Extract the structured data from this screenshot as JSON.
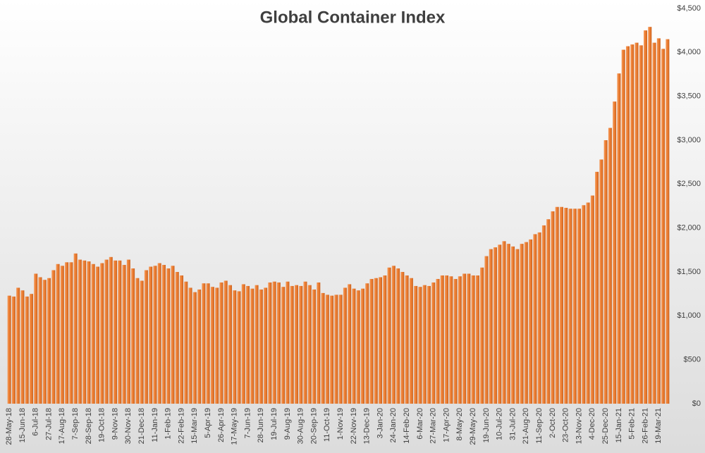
{
  "chart_data": {
    "type": "bar",
    "title": "Global Container Index",
    "categories": [
      "28-May-18",
      null,
      null,
      "15-Jun-18",
      null,
      null,
      "6-Jul-18",
      null,
      null,
      "27-Jul-18",
      null,
      null,
      "17-Aug-18",
      null,
      null,
      "7-Sep-18",
      null,
      null,
      "28-Sep-18",
      null,
      null,
      "19-Oct-18",
      null,
      null,
      "9-Nov-18",
      null,
      null,
      "30-Nov-18",
      null,
      null,
      "21-Dec-18",
      null,
      null,
      "11-Jan-19",
      null,
      null,
      "1-Feb-19",
      null,
      null,
      "22-Feb-19",
      null,
      null,
      "15-Mar-19",
      null,
      null,
      "5-Apr-19",
      null,
      null,
      "26-Apr-19",
      null,
      null,
      "17-May-19",
      null,
      null,
      "7-Jun-19",
      null,
      null,
      "28-Jun-19",
      null,
      null,
      "19-Jul-19",
      null,
      null,
      "9-Aug-19",
      null,
      null,
      "30-Aug-19",
      null,
      null,
      "20-Sep-19",
      null,
      null,
      "11-Oct-19",
      null,
      null,
      "1-Nov-19",
      null,
      null,
      "22-Nov-19",
      null,
      null,
      "13-Dec-19",
      null,
      null,
      "3-Jan-20",
      null,
      null,
      "24-Jan-20",
      null,
      null,
      "14-Feb-20",
      null,
      null,
      "6-Mar-20",
      null,
      null,
      "27-Mar-20",
      null,
      null,
      "17-Apr-20",
      null,
      null,
      "8-May-20",
      null,
      null,
      "29-May-20",
      null,
      null,
      "19-Jun-20",
      null,
      null,
      "10-Jul-20",
      null,
      null,
      "31-Jul-20",
      null,
      null,
      "21-Aug-20",
      null,
      null,
      "11-Sep-20",
      null,
      null,
      "2-Oct-20",
      null,
      null,
      "23-Oct-20",
      null,
      null,
      "13-Nov-20",
      null,
      null,
      "4-Dec-20",
      null,
      null,
      "25-Dec-20",
      null,
      null,
      "15-Jan-21",
      null,
      null,
      "5-Feb-21",
      null,
      null,
      "26-Feb-21",
      null,
      null,
      "19-Mar-21",
      null,
      null
    ],
    "values": [
      1230,
      1220,
      1320,
      1290,
      1220,
      1250,
      1480,
      1440,
      1410,
      1430,
      1520,
      1590,
      1570,
      1610,
      1610,
      1710,
      1640,
      1630,
      1620,
      1590,
      1560,
      1600,
      1640,
      1670,
      1630,
      1630,
      1580,
      1640,
      1540,
      1430,
      1400,
      1520,
      1560,
      1570,
      1600,
      1580,
      1540,
      1570,
      1500,
      1460,
      1390,
      1320,
      1270,
      1300,
      1370,
      1370,
      1330,
      1320,
      1380,
      1400,
      1350,
      1290,
      1280,
      1360,
      1340,
      1310,
      1350,
      1300,
      1320,
      1380,
      1390,
      1380,
      1330,
      1390,
      1340,
      1350,
      1340,
      1390,
      1350,
      1300,
      1380,
      1260,
      1240,
      1230,
      1240,
      1240,
      1320,
      1360,
      1310,
      1290,
      1310,
      1370,
      1420,
      1430,
      1440,
      1460,
      1550,
      1570,
      1540,
      1500,
      1460,
      1430,
      1340,
      1330,
      1350,
      1340,
      1380,
      1420,
      1460,
      1460,
      1450,
      1420,
      1450,
      1480,
      1480,
      1460,
      1460,
      1550,
      1680,
      1760,
      1780,
      1810,
      1850,
      1820,
      1790,
      1760,
      1820,
      1840,
      1870,
      1930,
      1950,
      2030,
      2100,
      2190,
      2240,
      2240,
      2230,
      2220,
      2220,
      2220,
      2260,
      2290,
      2370,
      2640,
      2780,
      3000,
      3140,
      3440,
      3760,
      4030,
      4070,
      4090,
      4110,
      4080,
      4250,
      4290,
      4110,
      4160,
      4040,
      4150
    ],
    "color": "#ed7d31",
    "ylim": [
      0,
      4500
    ],
    "yticks": [
      {
        "value": 0,
        "label": "$0"
      },
      {
        "value": 500,
        "label": "$500"
      },
      {
        "value": 1000,
        "label": "$1,000"
      },
      {
        "value": 1500,
        "label": "$1,500"
      },
      {
        "value": 2000,
        "label": "$2,000"
      },
      {
        "value": 2500,
        "label": "$2,500"
      },
      {
        "value": 3000,
        "label": "$3,000"
      },
      {
        "value": 3500,
        "label": "$3,500"
      },
      {
        "value": 4000,
        "label": "$4,000"
      },
      {
        "value": 4500,
        "label": "$4,500"
      }
    ]
  }
}
